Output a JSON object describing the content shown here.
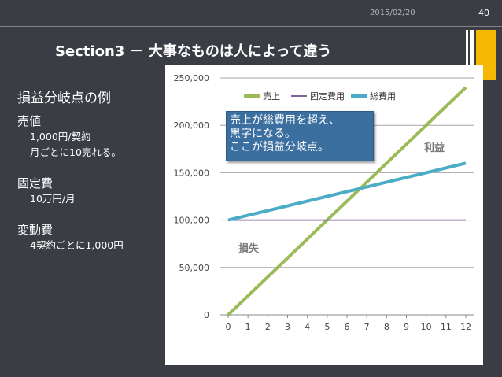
{
  "header": {
    "date": "2015/02/20",
    "page": "40"
  },
  "title": "Section3 － 大事なものは人によって違う",
  "sidebar": {
    "heading": "損益分岐点の例",
    "sections": [
      {
        "label": "売値",
        "details": [
          "1,000円/契約",
          "月ごとに10売れる。"
        ]
      },
      {
        "label": "固定費",
        "details": [
          "10万円/月"
        ]
      },
      {
        "label": "変動費",
        "details": [
          "4契約ごとに1,000円"
        ]
      }
    ]
  },
  "callout": {
    "lines": [
      "売上が総費用を超え、",
      "黒字になる。",
      "ここが損益分岐点。"
    ]
  },
  "annotations": {
    "profit": "利益",
    "loss": "損失"
  },
  "colors": {
    "sales": "#9bbb59",
    "fixed": "#8064a2",
    "total": "#4bacc6"
  },
  "chart_data": {
    "type": "line",
    "x": [
      0,
      1,
      2,
      3,
      4,
      5,
      6,
      7,
      8,
      9,
      10,
      11,
      12
    ],
    "ylim": [
      0,
      250000
    ],
    "yticks": [
      0,
      50000,
      100000,
      150000,
      200000,
      250000
    ],
    "ytick_labels": [
      "0",
      "50,000",
      "100,000",
      "150,000",
      "200,000",
      "250,000"
    ],
    "legend_position": "top",
    "grid": true,
    "series": [
      {
        "name": "売上",
        "color": "#9bbb59",
        "values": [
          0,
          20000,
          40000,
          60000,
          80000,
          100000,
          120000,
          140000,
          160000,
          180000,
          200000,
          220000,
          240000
        ]
      },
      {
        "name": "固定費用",
        "color": "#8064a2",
        "values": [
          100000,
          100000,
          100000,
          100000,
          100000,
          100000,
          100000,
          100000,
          100000,
          100000,
          100000,
          100000,
          100000
        ]
      },
      {
        "name": "総費用",
        "color": "#4bacc6",
        "values": [
          100000,
          105000,
          110000,
          115000,
          120000,
          125000,
          130000,
          135000,
          140000,
          145000,
          150000,
          155000,
          160000
        ]
      }
    ]
  }
}
